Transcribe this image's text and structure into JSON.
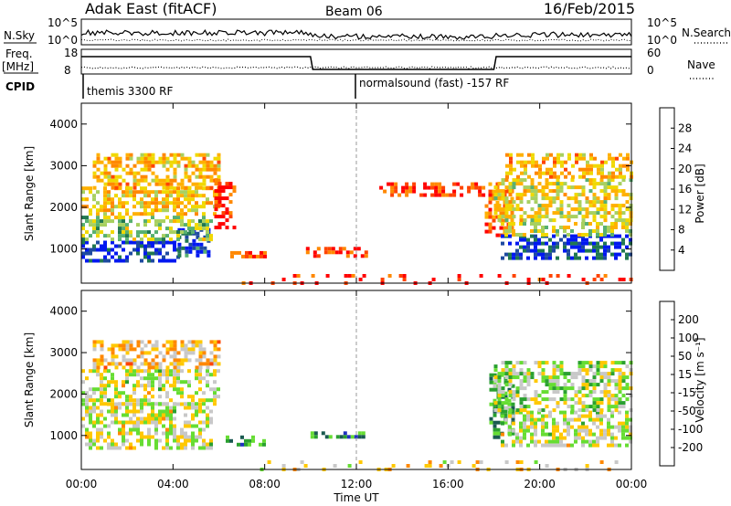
{
  "header": {
    "station": "Adak East (fitACF)",
    "beam": "Beam 06",
    "date": "16/Feb/2015"
  },
  "top_panels": {
    "nsky_label": "N.Sky",
    "nsky_ticks": [
      "10^5",
      "10^0"
    ],
    "nsearch_label": "N.Search",
    "freq_label_1": "Freq.",
    "freq_label_2": "[MHz]",
    "freq_ticks": [
      "18",
      "8"
    ],
    "nave_ticks": [
      "60",
      "0"
    ],
    "nave_label": "Nave",
    "cpid_label": "CPID",
    "cpid_1": "themis 3300 RF",
    "cpid_2": "normalsound (fast) -157 RF"
  },
  "x_axis": {
    "label": "Time UT",
    "ticks": [
      "00:00",
      "04:00",
      "08:00",
      "12:00",
      "16:00",
      "20:00",
      "00:00"
    ]
  },
  "power_colorbar": {
    "label": "Power [dB]",
    "ticks": [
      "28",
      "24",
      "20",
      "16",
      "12",
      "8",
      "4"
    ],
    "colors": [
      "#ff0000",
      "#ff4400",
      "#ff8800",
      "#ffb000",
      "#f0d800",
      "#a8d060",
      "#58b070",
      "#207850",
      "#1e4aa0",
      "#0018f0"
    ]
  },
  "velocity_colorbar": {
    "label": "Velocity [m s⁻¹]",
    "ticks": [
      "200",
      "100",
      "50",
      "15",
      "-15",
      "-50",
      "-100",
      "-200"
    ],
    "colors": [
      "#2030c0",
      "#1a5a50",
      "#2aa030",
      "#66dd33",
      "#c8c8c8",
      "#ffc800",
      "#ff8800",
      "#ff4400",
      "#ff0000"
    ]
  },
  "chart_data": [
    {
      "type": "heatmap",
      "name": "Power",
      "ylabel": "Slant Range [km]",
      "xlabel": "",
      "x_range_hours": [
        0,
        24
      ],
      "ylim": [
        180,
        4500
      ],
      "yticks": [
        1000,
        2000,
        3000,
        4000
      ],
      "regions": [
        {
          "t0": 0.0,
          "t1": 4.2,
          "r0": 700,
          "r1": 1200,
          "level": 0.9
        },
        {
          "t0": 4.2,
          "t1": 5.6,
          "r0": 800,
          "r1": 1500,
          "level": 0.85
        },
        {
          "t0": 0.0,
          "t1": 5.6,
          "r0": 1200,
          "r1": 1800,
          "level": 0.55
        },
        {
          "t0": 0.0,
          "t1": 6.0,
          "r0": 1800,
          "r1": 2500,
          "level": 0.4
        },
        {
          "t0": 0.5,
          "t1": 6.0,
          "r0": 2500,
          "r1": 3300,
          "level": 0.35
        },
        {
          "t0": 5.8,
          "t1": 6.6,
          "r0": 1500,
          "r1": 2700,
          "level": 0.12
        },
        {
          "t0": 6.5,
          "t1": 8.0,
          "r0": 800,
          "r1": 950,
          "level": 0.1
        },
        {
          "t0": 9.8,
          "t1": 12.5,
          "r0": 850,
          "r1": 1050,
          "level": 0.12
        },
        {
          "t0": 13.0,
          "t1": 17.5,
          "r0": 2300,
          "r1": 2600,
          "level": 0.12
        },
        {
          "t0": 17.6,
          "t1": 18.8,
          "r0": 1300,
          "r1": 2600,
          "level": 0.2
        },
        {
          "t0": 18.3,
          "t1": 24.0,
          "r0": 750,
          "r1": 1350,
          "level": 0.88
        },
        {
          "t0": 18.3,
          "t1": 24.0,
          "r0": 1350,
          "r1": 1650,
          "level": 0.5
        },
        {
          "t0": 18.0,
          "t1": 24.0,
          "r0": 1650,
          "r1": 2700,
          "level": 0.45
        },
        {
          "t0": 18.5,
          "t1": 24.0,
          "r0": 2700,
          "r1": 3300,
          "level": 0.35
        },
        {
          "t0": 7.0,
          "t1": 24.0,
          "r0": 200,
          "r1": 400,
          "level": 0.1
        }
      ]
    },
    {
      "type": "heatmap",
      "name": "Velocity",
      "ylabel": "Slant Range [km]",
      "xlabel": "Time UT",
      "x_range_hours": [
        0,
        24
      ],
      "ylim": [
        180,
        4500
      ],
      "yticks": [
        1000,
        2000,
        3000,
        4000
      ],
      "regions": [
        {
          "t0": 0.0,
          "t1": 5.6,
          "r0": 700,
          "r1": 1800,
          "level": 0.5
        },
        {
          "t0": 0.0,
          "t1": 6.0,
          "r0": 1800,
          "r1": 2600,
          "level": 0.5
        },
        {
          "t0": 0.5,
          "t1": 6.0,
          "r0": 2600,
          "r1": 3300,
          "level": 0.62
        },
        {
          "t0": 6.3,
          "t1": 8.0,
          "r0": 800,
          "r1": 1000,
          "level": 0.25
        },
        {
          "t0": 10.0,
          "t1": 12.5,
          "r0": 950,
          "r1": 1100,
          "level": 0.25
        },
        {
          "t0": 17.8,
          "t1": 18.8,
          "r0": 1000,
          "r1": 2500,
          "level": 0.3
        },
        {
          "t0": 18.3,
          "t1": 24.0,
          "r0": 800,
          "r1": 1600,
          "level": 0.5
        },
        {
          "t0": 18.0,
          "t1": 24.0,
          "r0": 1600,
          "r1": 2800,
          "level": 0.45
        },
        {
          "t0": 7.0,
          "t1": 24.0,
          "r0": 200,
          "r1": 400,
          "level": 0.6
        }
      ]
    }
  ]
}
